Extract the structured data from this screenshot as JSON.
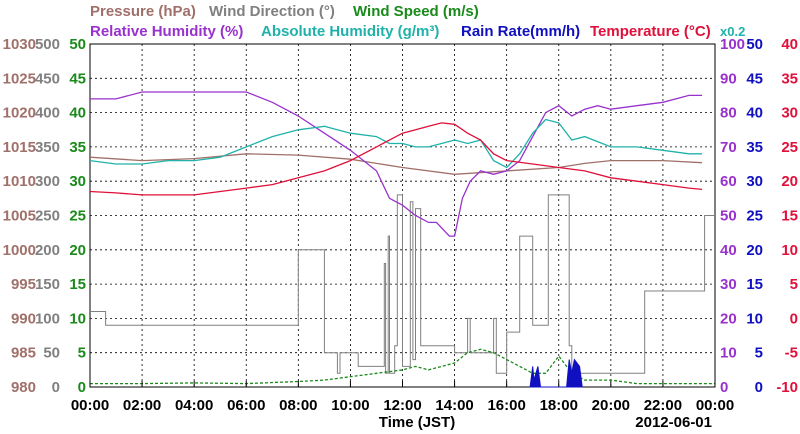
{
  "legend": {
    "pressure": {
      "label": "Pressure (hPa)",
      "color": "#a0706a"
    },
    "wind_direction": {
      "label": "Wind Direction (°)",
      "color": "#808080"
    },
    "wind_speed": {
      "label": "Wind Speed (m/s)",
      "color": "#1a8a1a"
    },
    "relative_humidity": {
      "label": "Relative Humidity (%)",
      "color": "#9932cc"
    },
    "absolute_humidity": {
      "label": "Absolute Humidity (g/m³)",
      "color": "#20b2aa"
    },
    "rain_rate": {
      "label": "Rain Rate(mm/h)",
      "color": "#1010c0"
    },
    "temperature": {
      "label": "Temperature (°C)",
      "color": "#e0103a"
    },
    "abs_hum_scale_note": {
      "label": "x0.2",
      "color": "#20b2aa"
    }
  },
  "chart_data": {
    "type": "line",
    "xlabel": "Time (JST)",
    "date_label": "2012-06-01",
    "x_ticks": [
      "00:00",
      "02:00",
      "04:00",
      "06:00",
      "08:00",
      "10:00",
      "12:00",
      "14:00",
      "16:00",
      "18:00",
      "20:00",
      "22:00",
      "00:00"
    ],
    "xlim_hours": [
      0,
      24
    ],
    "grid": true,
    "axes": {
      "pressure": {
        "ticks": [
          980,
          985,
          990,
          995,
          1000,
          1005,
          1010,
          1015,
          1020,
          1025,
          1030
        ],
        "color": "#a0706a",
        "side": "left"
      },
      "wind_direction": {
        "ticks": [
          0,
          50,
          100,
          150,
          200,
          250,
          300,
          350,
          400,
          450,
          500
        ],
        "color": "#808080",
        "side": "left"
      },
      "wind_speed": {
        "ticks": [
          0,
          5,
          10,
          15,
          20,
          25,
          30,
          35,
          40,
          45,
          50
        ],
        "color": "#1a8a1a",
        "side": "left"
      },
      "relative_humidity": {
        "ticks": [
          0,
          10,
          20,
          30,
          40,
          50,
          60,
          70,
          80,
          90,
          100
        ],
        "color": "#9932cc",
        "side": "right"
      },
      "rain_rate": {
        "ticks": [
          0,
          5,
          10,
          15,
          20,
          25,
          30,
          35,
          40,
          45,
          50
        ],
        "color": "#1010c0",
        "side": "right"
      },
      "temperature": {
        "ticks": [
          -10,
          -5,
          0,
          5,
          10,
          15,
          20,
          25,
          30,
          35,
          40
        ],
        "color": "#e0103a",
        "side": "right"
      }
    },
    "series": [
      {
        "name": "Pressure (hPa)",
        "axis": "pressure",
        "x": [
          0,
          2,
          4,
          6,
          8,
          10,
          12,
          14,
          16,
          18,
          19,
          20,
          22,
          23.5
        ],
        "y": [
          1013.5,
          1013,
          1013.3,
          1014,
          1013.8,
          1013.2,
          1012,
          1011,
          1011.5,
          1012,
          1012.6,
          1013,
          1013,
          1012.7
        ]
      },
      {
        "name": "Wind Direction (°)",
        "axis": "wind_direction",
        "x": [
          0,
          0.5,
          0.6,
          5,
          7.9,
          8,
          8.9,
          9,
          9.5,
          9.6,
          10.2,
          10.3,
          11,
          11.3,
          11.35,
          11.45,
          11.5,
          11.7,
          11.8,
          12,
          12.3,
          12.4,
          12.5,
          12.7,
          13,
          13.8,
          14,
          14.5,
          14.6,
          15.5,
          15.6,
          16,
          16.5,
          17,
          17.5,
          17.6,
          18,
          18.4,
          18.5,
          19.5,
          20,
          20.5,
          21,
          21.3,
          23,
          23.5,
          23.6,
          24
        ],
        "y": [
          110,
          110,
          90,
          90,
          90,
          200,
          200,
          50,
          20,
          50,
          50,
          30,
          30,
          180,
          20,
          220,
          20,
          60,
          280,
          30,
          270,
          40,
          260,
          60,
          60,
          60,
          50,
          100,
          50,
          100,
          20,
          80,
          220,
          90,
          90,
          280,
          280,
          60,
          20,
          20,
          20,
          20,
          20,
          140,
          140,
          140,
          250,
          250
        ]
      },
      {
        "name": "Wind Speed (m/s)",
        "axis": "wind_speed",
        "x": [
          0,
          2,
          4,
          6,
          8,
          9,
          10,
          11,
          12,
          12.5,
          13,
          13.5,
          14,
          14.5,
          15,
          15.5,
          16,
          16.5,
          17,
          17.5,
          18,
          18.5,
          19,
          20,
          21,
          22,
          23,
          24
        ],
        "y": [
          0.5,
          0.5,
          0.6,
          0.5,
          0.8,
          1.0,
          1.5,
          2.0,
          2.5,
          3.0,
          2.5,
          3.0,
          3.5,
          5.0,
          5.5,
          5.0,
          4.0,
          3.0,
          2.0,
          2.0,
          4.5,
          2.0,
          1.0,
          1.0,
          0.5,
          0.5,
          0.5,
          0.5
        ]
      },
      {
        "name": "Relative Humidity (%)",
        "axis": "relative_humidity",
        "x": [
          0,
          1,
          2,
          3,
          4,
          5,
          6,
          7,
          8,
          9,
          10,
          11,
          11.5,
          12,
          12.5,
          13,
          13.3,
          13.8,
          14,
          14.3,
          14.6,
          15,
          15.5,
          16,
          16.5,
          17,
          17.5,
          18,
          18.5,
          19,
          19.5,
          20,
          21,
          22,
          23,
          23.5
        ],
        "y": [
          84,
          84,
          86,
          86,
          86,
          86,
          86,
          83,
          79,
          74,
          69,
          63,
          55,
          53,
          50,
          48,
          48,
          44,
          44,
          55,
          60,
          63,
          62,
          63,
          66,
          73,
          80,
          82,
          79,
          81,
          82,
          81,
          82,
          83,
          85,
          85
        ]
      },
      {
        "name": "Absolute Humidity (g/m³)",
        "axis": "relative_humidity",
        "x": [
          0,
          1,
          2,
          3,
          4,
          5,
          6,
          7,
          8,
          9,
          10,
          11,
          11.5,
          12,
          12.5,
          13,
          13.5,
          14,
          14.5,
          15,
          15.5,
          16,
          16.5,
          17,
          17.5,
          18,
          18.5,
          19,
          20,
          21,
          22,
          23,
          23.5
        ],
        "y": [
          66,
          65,
          65,
          66,
          66,
          67,
          70,
          73,
          75,
          76,
          74,
          73,
          71,
          71,
          70,
          70,
          71,
          72,
          71,
          72,
          66,
          64,
          68,
          74,
          78,
          77,
          72,
          73,
          70,
          70,
          69,
          68,
          68
        ]
      },
      {
        "name": "Rain Rate(mm/h)",
        "axis": "rain_rate",
        "x": [
          16.9,
          17.0,
          17.05,
          17.2,
          17.3,
          18.3,
          18.4,
          18.5,
          18.6,
          18.8,
          18.9
        ],
        "y": [
          0,
          3,
          1,
          3,
          0,
          0,
          4,
          2,
          4,
          3,
          0
        ]
      },
      {
        "name": "Temperature (°C)",
        "axis": "temperature",
        "x": [
          0,
          1,
          2,
          3,
          4,
          5,
          6,
          7,
          8,
          9,
          10,
          11,
          12,
          13,
          13.5,
          14,
          14.5,
          15,
          15.5,
          16,
          17,
          18,
          19,
          20,
          21,
          22,
          23,
          23.5
        ],
        "y": [
          18.5,
          18.3,
          18,
          18,
          18,
          18.5,
          19,
          19.5,
          20.5,
          21.5,
          23,
          25,
          27,
          28,
          28.5,
          28.3,
          27,
          26,
          24,
          23,
          22.5,
          22,
          21.5,
          20.5,
          20,
          19.5,
          19,
          18.8
        ]
      }
    ]
  }
}
